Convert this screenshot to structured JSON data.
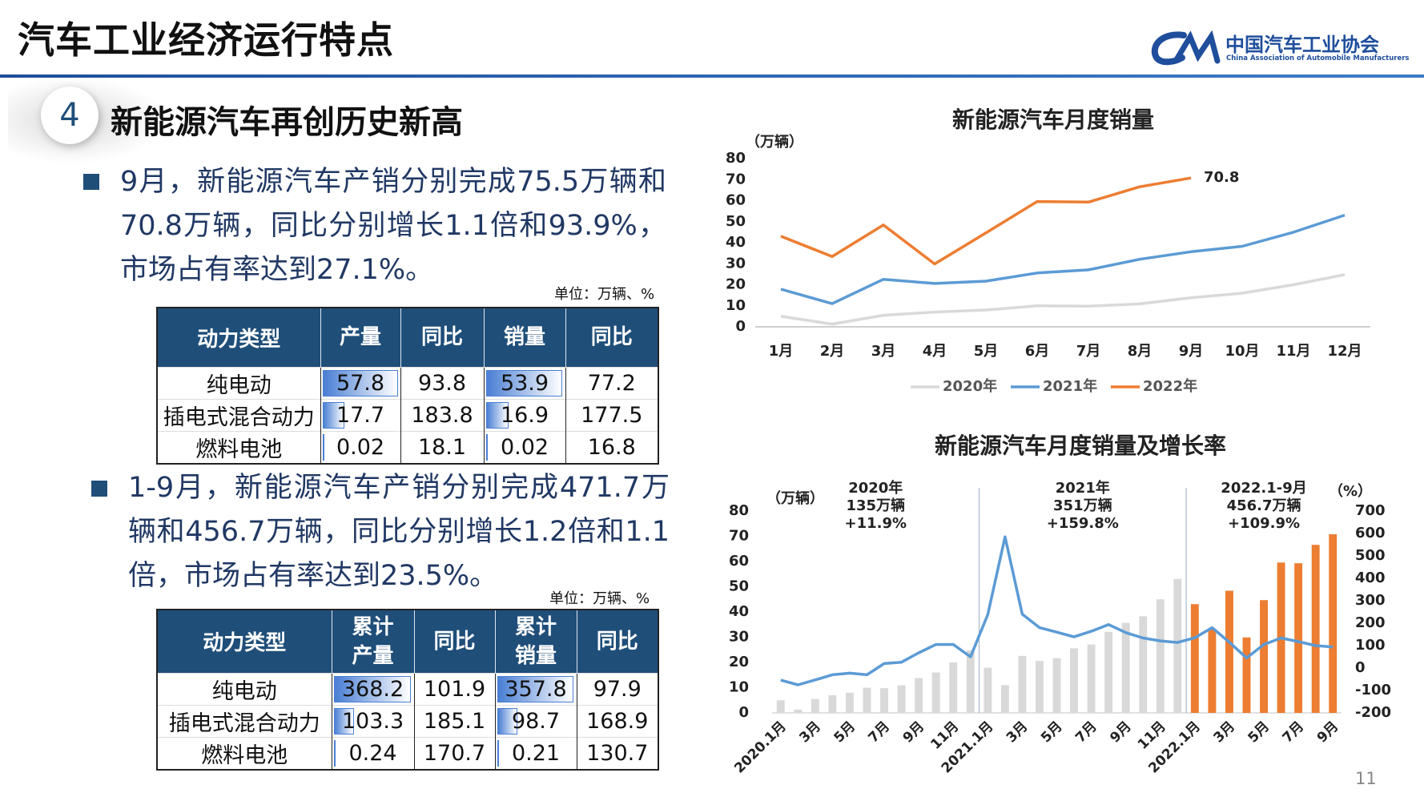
{
  "header": {
    "title": "汽车工业经济运行特点",
    "logo_cn": "中国汽车工业协会",
    "logo_en": "China Association of Automobile Manufacturers"
  },
  "section": {
    "number": "4",
    "title": "新能源汽车再创历史新高"
  },
  "paragraphs": [
    "9月，新能源汽车产销分别完成75.5万辆和70.8万辆，同比分别增长1.1倍和93.9%，市场占有率达到27.1%。",
    "1-9月，新能源汽车产销分别完成471.7万辆和456.7万辆，同比分别增长1.2倍和1.1倍，市场占有率达到23.5%。"
  ],
  "tables": [
    {
      "unit": "单位：万辆、%",
      "header": [
        "动力类型",
        "产量",
        "同比",
        "销量",
        "同比"
      ],
      "rows": [
        [
          "纯电动",
          57.8,
          93.8,
          53.9,
          77.2
        ],
        [
          "插电式混合动力",
          17.7,
          183.8,
          16.9,
          177.5
        ],
        [
          "燃料电池",
          0.02,
          18.1,
          0.02,
          16.8
        ]
      ],
      "data_bar_columns": [
        1,
        3
      ],
      "header_color": "#1f4e79"
    },
    {
      "unit": "单位：万辆、%",
      "header": [
        "动力类型",
        "累计产量",
        "同比",
        "累计销量",
        "同比"
      ],
      "rows": [
        [
          "纯电动",
          368.2,
          101.9,
          357.8,
          97.9
        ],
        [
          "插电式混合动力",
          103.3,
          185.1,
          98.7,
          168.9
        ],
        [
          "燃料电池",
          0.24,
          170.7,
          0.21,
          130.7
        ]
      ],
      "data_bar_columns": [
        1,
        3
      ],
      "header_color": "#1f4e79"
    }
  ],
  "chart_data": [
    {
      "type": "line",
      "title": "新能源汽车月度销量",
      "y_unit": "（万辆）",
      "categories": [
        "1月",
        "2月",
        "3月",
        "4月",
        "5月",
        "6月",
        "7月",
        "8月",
        "9月",
        "10月",
        "11月",
        "12月"
      ],
      "series": [
        {
          "name": "2020年",
          "color": "#d9d9d9",
          "values": [
            5,
            1.3,
            5.5,
            7,
            8,
            10,
            9.8,
            10.9,
            13.8,
            16,
            20,
            24.8
          ]
        },
        {
          "name": "2021年",
          "color": "#5b9bd5",
          "values": [
            17.9,
            11,
            22.6,
            20.6,
            21.7,
            25.6,
            27.1,
            32.1,
            35.7,
            38.3,
            45,
            53.1
          ]
        },
        {
          "name": "2022年",
          "color": "#ed7d31",
          "values": [
            43.1,
            33.4,
            48.4,
            29.9,
            44.7,
            59.6,
            59.3,
            66.6,
            70.8,
            null,
            null,
            null
          ],
          "label": "last"
        }
      ],
      "ylim": [
        0,
        80
      ],
      "yticks": [
        0,
        10,
        20,
        30,
        40,
        50,
        60,
        70,
        80
      ],
      "grid": false,
      "legend": "bottom"
    },
    {
      "type": "combo",
      "title": "新能源汽车月度销量及增长率",
      "y_unit": "（万辆）",
      "y2_unit": "（%）",
      "categories": [
        "2020.1月",
        null,
        "3月",
        null,
        "5月",
        null,
        "7月",
        null,
        "9月",
        null,
        "11月",
        null,
        "2021.1月",
        null,
        "3月",
        null,
        "5月",
        null,
        "7月",
        null,
        "9月",
        null,
        "11月",
        null,
        "2022.1月",
        null,
        "3月",
        null,
        "5月",
        null,
        "7月",
        null,
        "9月"
      ],
      "series": [
        {
          "type": "bar",
          "values": [
            5,
            1.3,
            5.5,
            7,
            8,
            10,
            9.8,
            10.9,
            13.8,
            16,
            20,
            24.8,
            17.9,
            11,
            22.6,
            20.6,
            21.7,
            25.6,
            27.1,
            32.1,
            35.7,
            38.3,
            45,
            53.1,
            43.1,
            33.4,
            48.4,
            29.9,
            44.7,
            59.6,
            59.3,
            66.6,
            70.8
          ],
          "colors": [
            "#d9d9d9",
            "#d9d9d9",
            "#d9d9d9",
            "#d9d9d9",
            "#d9d9d9",
            "#d9d9d9",
            "#d9d9d9",
            "#d9d9d9",
            "#d9d9d9",
            "#d9d9d9",
            "#d9d9d9",
            "#d9d9d9",
            "#d9d9d9",
            "#d9d9d9",
            "#d9d9d9",
            "#d9d9d9",
            "#d9d9d9",
            "#d9d9d9",
            "#d9d9d9",
            "#d9d9d9",
            "#d9d9d9",
            "#d9d9d9",
            "#d9d9d9",
            "#d9d9d9",
            "#ed7d31",
            "#ed7d31",
            "#ed7d31",
            "#ed7d31",
            "#ed7d31",
            "#ed7d31",
            "#ed7d31",
            "#ed7d31",
            "#ed7d31"
          ]
        },
        {
          "type": "line",
          "axis": "y2",
          "color": "#5b9bd5",
          "values": [
            -54,
            -75,
            -53,
            -30,
            -23,
            -30,
            20,
            26,
            68,
            105,
            105,
            50,
            238,
            585,
            240,
            180,
            160,
            139,
            164,
            194,
            158,
            134,
            121,
            114,
            135,
            180,
            115,
            45,
            105,
            134,
            118,
            100,
            94
          ]
        }
      ],
      "annotations": [
        [
          "2020年",
          "135万辆",
          "+11.9%"
        ],
        [
          "2021年",
          "351万辆",
          "+159.8%"
        ],
        [
          "2022.1-9月",
          "456.7万辆",
          "+109.9%"
        ]
      ],
      "ylim": [
        0,
        80
      ],
      "yticks": [
        0,
        10,
        20,
        30,
        40,
        50,
        60,
        70,
        80
      ],
      "y2lim": [
        -200,
        700
      ],
      "y2ticks": [
        -200,
        -100,
        0,
        100,
        200,
        300,
        400,
        500,
        600,
        700
      ],
      "grid": false
    }
  ],
  "page_number": "11"
}
